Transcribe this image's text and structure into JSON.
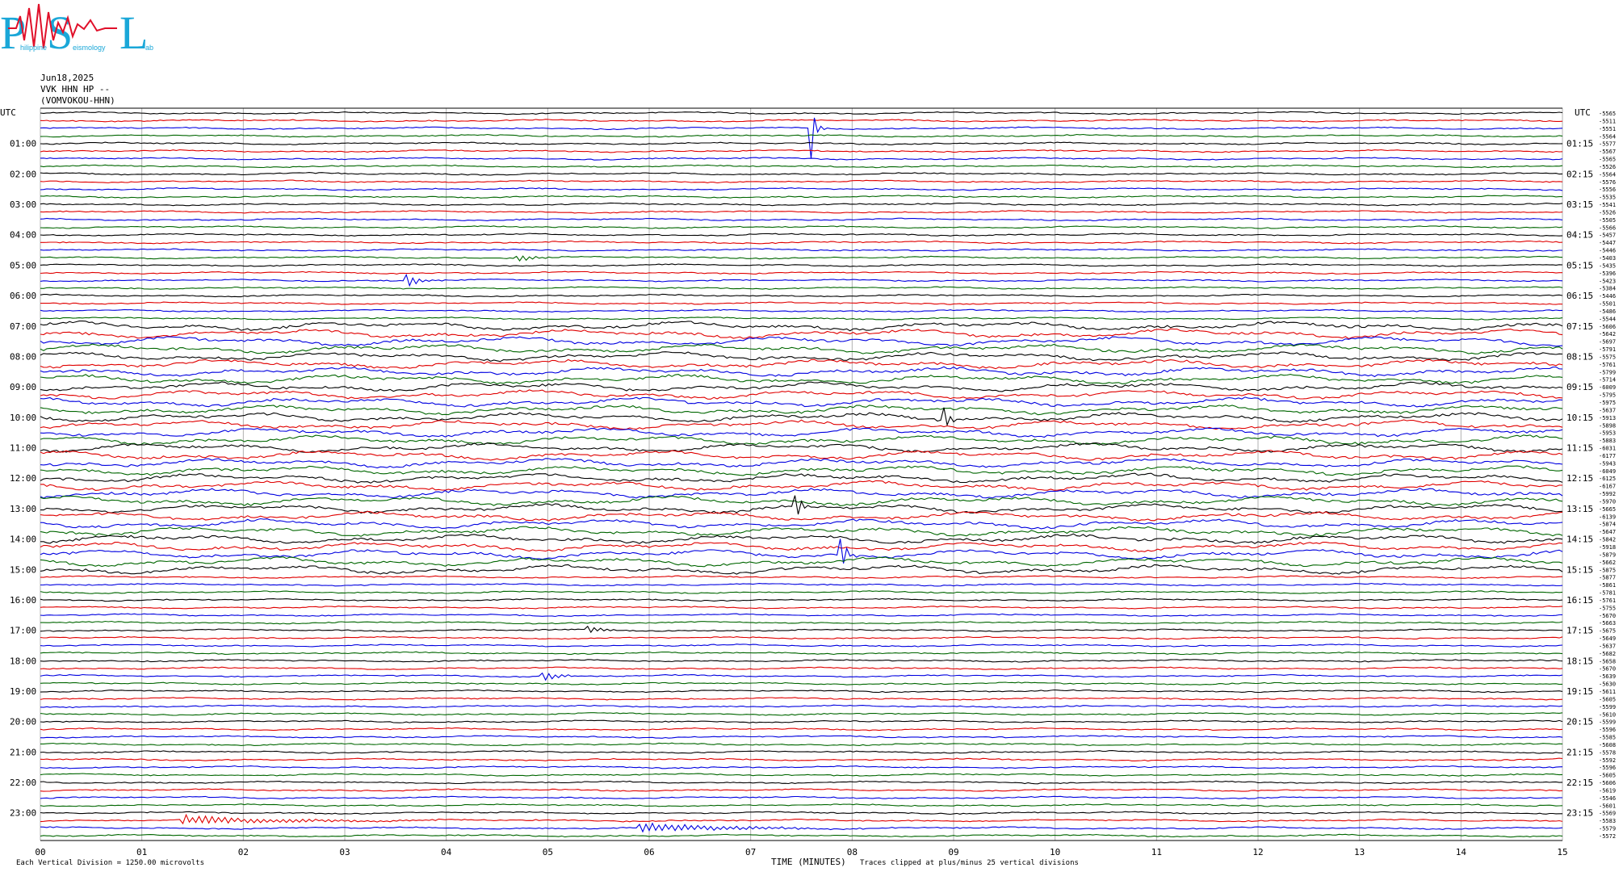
{
  "logo": {
    "letters": [
      "P",
      "S",
      "L"
    ],
    "words": [
      "hilippine",
      "eismology",
      "ab"
    ]
  },
  "header": {
    "date": "Jun18,2025",
    "station": "VVK HHN HP --",
    "channel": "(VOMVOKOU-HHN)"
  },
  "footer": {
    "vertical_division": "Each Vertical Division = 1250.00 microvolts",
    "clip_note": "Traces clipped at plus/minus 25 vertical divisions"
  },
  "colors": {
    "trace_cycle": [
      "#000000",
      "#e00000",
      "#0000e0",
      "#006600"
    ],
    "grid": "#b0b0b0",
    "logo_blue": "#1aa7d8",
    "logo_red": "#e0102a"
  },
  "chart_data": {
    "type": "line",
    "title": "",
    "xlabel": "TIME (MINUTES)",
    "ylabel": "UTC",
    "right_label": "UTC",
    "x_ticks": [
      "00",
      "01",
      "02",
      "03",
      "04",
      "05",
      "06",
      "07",
      "08",
      "09",
      "10",
      "11",
      "12",
      "13",
      "14",
      "15"
    ],
    "xlim": [
      0,
      15
    ],
    "trace_interval_minutes": 15,
    "trace_count": 96,
    "left_hour_labels": [
      "01:00",
      "02:00",
      "03:00",
      "04:00",
      "05:00",
      "06:00",
      "07:00",
      "08:00",
      "09:00",
      "10:00",
      "11:00",
      "12:00",
      "13:00",
      "14:00",
      "15:00",
      "16:00",
      "17:00",
      "18:00",
      "19:00",
      "20:00",
      "21:00",
      "22:00",
      "23:00"
    ],
    "right_hour_labels": [
      "01:15",
      "02:15",
      "03:15",
      "04:15",
      "05:15",
      "06:15",
      "07:15",
      "08:15",
      "09:15",
      "10:15",
      "11:15",
      "12:15",
      "13:15",
      "14:15",
      "15:15",
      "16:15",
      "17:15",
      "18:15",
      "19:15",
      "20:15",
      "21:15",
      "22:15",
      "23:15"
    ],
    "trace_offsets": [
      "-5565",
      "-5511",
      "-5551",
      "-5564",
      "-5577",
      "-5567",
      "-5565",
      "-5526",
      "-5564",
      "-5576",
      "-5556",
      "-5535",
      "-5541",
      "-5526",
      "-5505",
      "-5566",
      "-5457",
      "-5447",
      "-5446",
      "-5403",
      "-5435",
      "-5396",
      "-5423",
      "-5384",
      "-5446",
      "-5501",
      "-5486",
      "-5544",
      "-5606",
      "-5642",
      "-5697",
      "-5791",
      "-5575",
      "-5761",
      "-5799",
      "-5714",
      "-6009",
      "-5795",
      "-5975",
      "-5637",
      "-5913",
      "-5898",
      "-5953",
      "-5883",
      "-6031",
      "-6177",
      "-5943",
      "-6049",
      "-6125",
      "-6167",
      "-5992",
      "-5970",
      "-5665",
      "-6139",
      "-5874",
      "-5647",
      "-5842",
      "-5918",
      "-5879",
      "-5662",
      "-5875",
      "-5877",
      "-5861",
      "-5781",
      "-5761",
      "-5755",
      "-5670",
      "-5663",
      "-5675",
      "-5649",
      "-5637",
      "-5682",
      "-5658",
      "-5670",
      "-5639",
      "-5630",
      "-5611",
      "-5605",
      "-5599",
      "-5610",
      "-5599",
      "-5596",
      "-5585",
      "-5608",
      "-5578",
      "-5592",
      "-5596",
      "-5605",
      "-5606",
      "-5619",
      "-5546",
      "-5601",
      "-5569",
      "-5583",
      "-5579",
      "-5572"
    ],
    "events": [
      {
        "trace": 2,
        "minute": 7.6,
        "amplitude": "clipped"
      },
      {
        "trace": 22,
        "minute": 3.6,
        "amplitude": "medium"
      },
      {
        "trace": 19,
        "minute": 4.7,
        "amplitude": "small"
      },
      {
        "trace": 40,
        "minute": 8.9,
        "amplitude": "large"
      },
      {
        "trace": 52,
        "minute": 7.45,
        "amplitude": "large"
      },
      {
        "trace": 58,
        "minute": 7.9,
        "amplitude": "large"
      },
      {
        "trace": 68,
        "minute": 5.4,
        "amplitude": "small"
      },
      {
        "trace": 74,
        "minute": 4.95,
        "amplitude": "medium"
      },
      {
        "trace": 93,
        "minute": 1.4,
        "amplitude": "long"
      },
      {
        "trace": 94,
        "minute": 5.9,
        "amplitude": "long"
      }
    ]
  }
}
